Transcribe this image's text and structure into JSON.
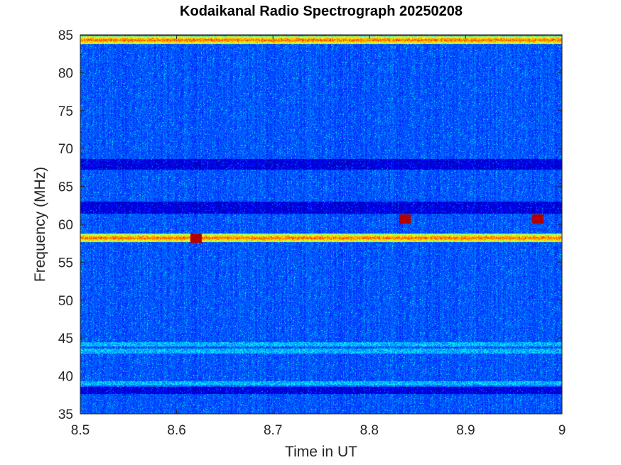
{
  "chart_data": {
    "type": "heatmap",
    "title": "Kodaikanal Radio Spectrograph  20250208",
    "xlabel": "Time in UT",
    "ylabel": "Frequency (MHz)",
    "xlim": [
      8.5,
      9.0
    ],
    "ylim": [
      35,
      85
    ],
    "x_ticks": [
      "8.5",
      "8.6",
      "8.7",
      "8.8",
      "8.9",
      "9"
    ],
    "y_ticks": [
      "35",
      "40",
      "45",
      "50",
      "55",
      "60",
      "65",
      "70",
      "75",
      "80",
      "85"
    ],
    "colormap": "jet",
    "background_level": "dark blue noise",
    "features": [
      {
        "kind": "persistent emission line",
        "freq_mhz": 84.3,
        "intensity": "high"
      },
      {
        "kind": "persistent emission line",
        "freq_mhz": 58.2,
        "intensity": "high"
      },
      {
        "kind": "low-intensity band",
        "freq_range_mhz": [
          67.2,
          68.6
        ]
      },
      {
        "kind": "low-intensity band",
        "freq_range_mhz": [
          61.4,
          63.0
        ]
      },
      {
        "kind": "low-intensity band",
        "freq_range_mhz": [
          37.6,
          38.6
        ]
      },
      {
        "kind": "weak line",
        "freq_mhz": 44.2
      },
      {
        "kind": "weak line",
        "freq_mhz": 43.3
      },
      {
        "kind": "weak line",
        "freq_mhz": 39.0
      },
      {
        "kind": "spike",
        "time_ut": 8.62,
        "freq_mhz": 58.2,
        "intensity": "high"
      },
      {
        "kind": "spike",
        "time_ut": 8.837,
        "freq_mhz": 60.7,
        "intensity": "high"
      },
      {
        "kind": "spike",
        "time_ut": 8.975,
        "freq_mhz": 60.7,
        "intensity": "high"
      }
    ]
  }
}
